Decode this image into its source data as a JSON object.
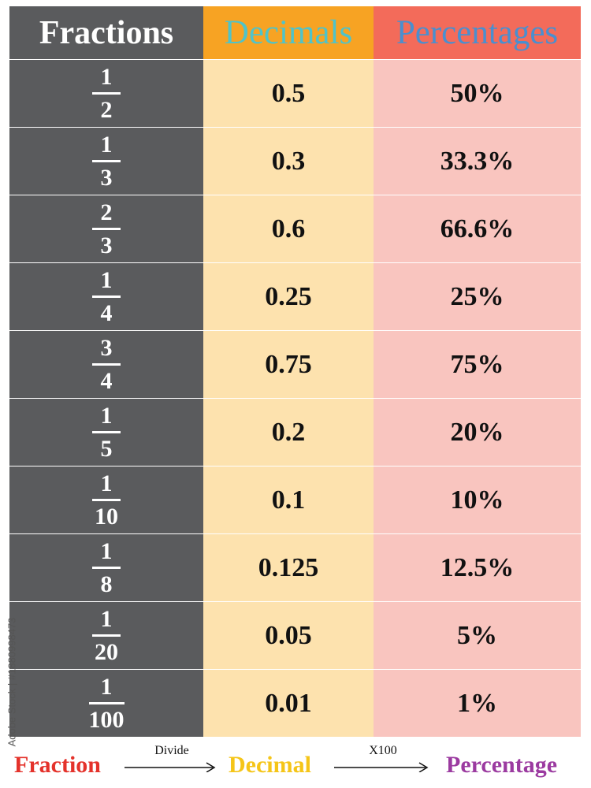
{
  "headers": {
    "fractions": "Fractions",
    "decimals": "Decimals",
    "percentages": "Percentages"
  },
  "rows": [
    {
      "numerator": "1",
      "denominator": "2",
      "decimal": "0.5",
      "percentage": "50%"
    },
    {
      "numerator": "1",
      "denominator": "3",
      "decimal": "0.3",
      "percentage": "33.3%"
    },
    {
      "numerator": "2",
      "denominator": "3",
      "decimal": "0.6",
      "percentage": "66.6%"
    },
    {
      "numerator": "1",
      "denominator": "4",
      "decimal": "0.25",
      "percentage": "25%"
    },
    {
      "numerator": "3",
      "denominator": "4",
      "decimal": "0.75",
      "percentage": "75%"
    },
    {
      "numerator": "1",
      "denominator": "5",
      "decimal": "0.2",
      "percentage": "20%"
    },
    {
      "numerator": "1",
      "denominator": "10",
      "decimal": "0.1",
      "percentage": "10%"
    },
    {
      "numerator": "1",
      "denominator": "8",
      "decimal": "0.125",
      "percentage": "12.5%"
    },
    {
      "numerator": "1",
      "denominator": "20",
      "decimal": "0.05",
      "percentage": "5%"
    },
    {
      "numerator": "1",
      "denominator": "100",
      "decimal": "0.01",
      "percentage": "1%"
    }
  ],
  "footer": {
    "fraction": "Fraction",
    "divide": "Divide",
    "decimal": "Decimal",
    "times100": "X100",
    "percentage": "Percentage"
  },
  "watermark": "Adobe Stock | #1880998473",
  "colors": {
    "fraction_column": "#5a5b5d",
    "decimal_header": "#f7a323",
    "decimal_column": "#fde2ae",
    "percentage_header": "#f36b5a",
    "percentage_column": "#f9c5bf"
  }
}
